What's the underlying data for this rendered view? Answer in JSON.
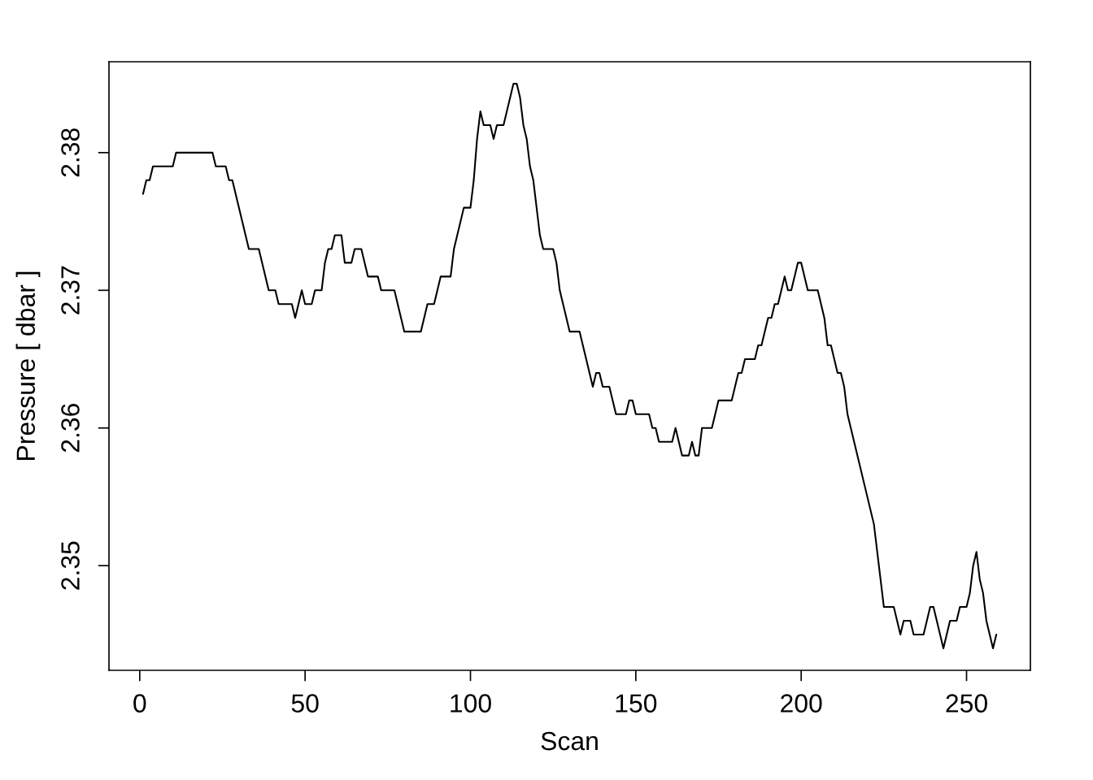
{
  "chart_data": {
    "type": "line",
    "xlabel": "Scan",
    "ylabel": "Pressure [ dbar ]",
    "x": [
      1,
      2,
      3,
      4,
      10,
      11,
      22,
      23,
      26,
      27,
      28,
      33,
      36,
      39,
      41,
      42,
      46,
      47,
      49,
      50,
      52,
      53,
      55,
      56,
      57,
      58,
      59,
      61,
      62,
      64,
      65,
      67,
      69,
      72,
      73,
      77,
      80,
      85,
      86,
      87,
      89,
      90,
      91,
      94,
      95,
      98,
      100,
      101,
      102,
      103,
      104,
      106,
      107,
      108,
      110,
      113,
      114,
      115,
      116,
      117,
      118,
      119,
      120,
      121,
      122,
      125,
      126,
      127,
      130,
      133,
      137,
      138,
      139,
      140,
      142,
      144,
      147,
      148,
      149,
      150,
      154,
      155,
      156,
      157,
      161,
      162,
      164,
      166,
      167,
      168,
      169,
      170,
      173,
      175,
      179,
      181,
      182,
      183,
      186,
      187,
      188,
      190,
      191,
      192,
      193,
      195,
      196,
      197,
      199,
      200,
      202,
      205,
      206,
      207,
      208,
      209,
      210,
      211,
      212,
      213,
      214,
      222,
      223,
      224,
      225,
      228,
      229,
      230,
      231,
      233,
      234,
      237,
      239,
      240,
      243,
      245,
      247,
      248,
      250,
      251,
      252,
      253,
      254,
      255,
      256,
      257,
      258,
      259
    ],
    "series": [
      {
        "color": "#000000",
        "values": [
          2.377,
          2.378,
          2.378,
          2.379,
          2.379,
          2.38,
          2.38,
          2.379,
          2.379,
          2.378,
          2.378,
          2.373,
          2.373,
          2.37,
          2.37,
          2.369,
          2.369,
          2.368,
          2.37,
          2.369,
          2.369,
          2.37,
          2.37,
          2.372,
          2.373,
          2.373,
          2.374,
          2.374,
          2.372,
          2.372,
          2.373,
          2.373,
          2.371,
          2.371,
          2.37,
          2.37,
          2.367,
          2.367,
          2.368,
          2.369,
          2.369,
          2.37,
          2.371,
          2.371,
          2.373,
          2.376,
          2.376,
          2.378,
          2.381,
          2.383,
          2.382,
          2.382,
          2.381,
          2.382,
          2.382,
          2.385,
          2.385,
          2.384,
          2.382,
          2.381,
          2.379,
          2.378,
          2.376,
          2.374,
          2.373,
          2.373,
          2.372,
          2.37,
          2.367,
          2.367,
          2.363,
          2.364,
          2.364,
          2.363,
          2.363,
          2.361,
          2.361,
          2.362,
          2.362,
          2.361,
          2.361,
          2.36,
          2.36,
          2.359,
          2.359,
          2.36,
          2.358,
          2.358,
          2.359,
          2.358,
          2.358,
          2.36,
          2.36,
          2.362,
          2.362,
          2.364,
          2.364,
          2.365,
          2.365,
          2.366,
          2.366,
          2.368,
          2.368,
          2.369,
          2.369,
          2.371,
          2.37,
          2.37,
          2.372,
          2.372,
          2.37,
          2.37,
          2.369,
          2.368,
          2.366,
          2.366,
          2.365,
          2.364,
          2.364,
          2.363,
          2.361,
          2.353,
          2.351,
          2.349,
          2.347,
          2.347,
          2.346,
          2.345,
          2.346,
          2.346,
          2.345,
          2.345,
          2.347,
          2.347,
          2.344,
          2.346,
          2.346,
          2.347,
          2.347,
          2.348,
          2.35,
          2.351,
          2.349,
          2.348,
          2.346,
          2.345,
          2.344,
          2.345
        ]
      }
    ],
    "xlim": [
      -9.3,
      269.3
    ],
    "ylim": [
      2.3424,
      2.3866
    ],
    "xticks": [
      0,
      50,
      100,
      150,
      200,
      250
    ],
    "yticks": [
      2.35,
      2.36,
      2.37,
      2.38
    ],
    "grid": false
  }
}
